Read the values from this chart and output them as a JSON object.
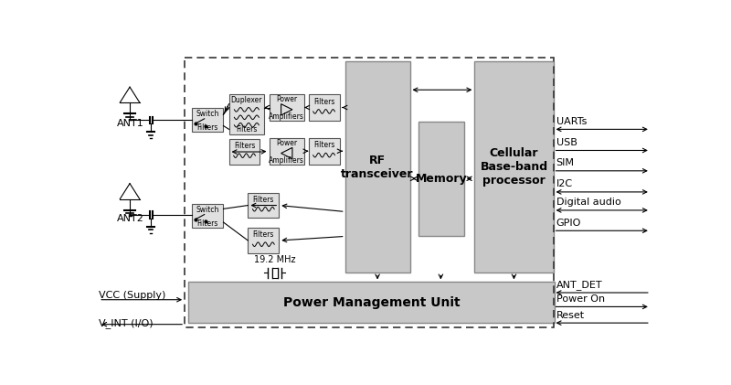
{
  "bg_color": "#ffffff",
  "light_gray": "#cccccc",
  "mid_gray": "#d8d8d8",
  "box_gray": "#e0e0e0",
  "edge_color": "#555555",
  "right_labels": [
    "UARTs",
    "USB",
    "SIM",
    "I2C",
    "Digital audio",
    "GPIO"
  ],
  "right_arrow_dirs": [
    "both",
    "right",
    "right",
    "both",
    "both",
    "right"
  ],
  "br_labels": [
    "ANT_DET",
    "Power On",
    "Reset"
  ],
  "br_arrow_dirs": [
    "left",
    "right",
    "left"
  ]
}
